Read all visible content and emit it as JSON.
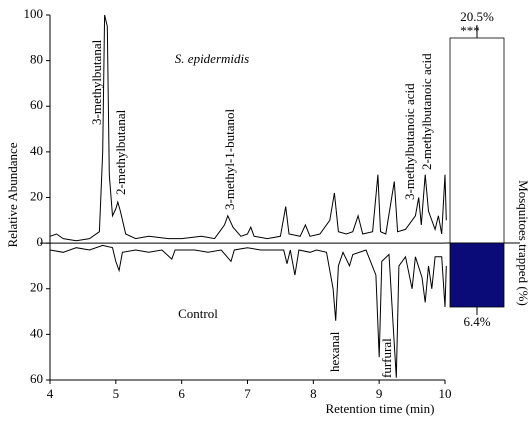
{
  "chart_data": [
    {
      "type": "line",
      "ylabel": "Relative Abundance",
      "xlabel": "Retention time (min)",
      "xlim": [
        4,
        10
      ],
      "xticks": [
        4,
        5,
        6,
        7,
        8,
        9,
        10
      ],
      "ylim": [
        -60,
        100
      ],
      "yticks": [
        {
          "value": -60,
          "label": "60"
        },
        {
          "value": -40,
          "label": "40"
        },
        {
          "value": -20,
          "label": "20"
        },
        0,
        20,
        40,
        60,
        80,
        100
      ],
      "annotations": [
        "S. epidermidis",
        "Control",
        "3-methylbutanal",
        "2-methylbutanal",
        "3-methyl-1-butanol",
        "3-methylbutanoic acid",
        "2-methylbutanoic acid",
        "hexanal",
        "furfural"
      ],
      "series": [
        {
          "name": "S. epidermidis",
          "color": "#000000",
          "x": [
            4.0,
            4.1,
            4.2,
            4.4,
            4.6,
            4.75,
            4.8,
            4.83,
            4.87,
            4.9,
            4.95,
            5.0,
            5.03,
            5.07,
            5.15,
            5.3,
            5.5,
            5.8,
            6.0,
            6.3,
            6.5,
            6.65,
            6.7,
            6.78,
            6.9,
            7.0,
            7.05,
            7.1,
            7.3,
            7.5,
            7.58,
            7.63,
            7.8,
            7.88,
            7.95,
            8.1,
            8.25,
            8.32,
            8.38,
            8.5,
            8.6,
            8.68,
            8.75,
            8.9,
            8.98,
            9.02,
            9.1,
            9.23,
            9.28,
            9.4,
            9.55,
            9.6,
            9.64,
            9.7,
            9.75,
            9.85,
            9.9,
            9.95,
            10.0,
            10.02
          ],
          "values": [
            3,
            4,
            2,
            1,
            2,
            5,
            40,
            100,
            95,
            30,
            12,
            15,
            18,
            14,
            4,
            2,
            3,
            2,
            2,
            3,
            2,
            8,
            12,
            7,
            3,
            4,
            7,
            3,
            2,
            3,
            16,
            4,
            3,
            8,
            3,
            4,
            10,
            22,
            5,
            4,
            5,
            12,
            4,
            5,
            30,
            5,
            4,
            27,
            5,
            6,
            12,
            20,
            8,
            30,
            14,
            6,
            12,
            4,
            30,
            10
          ]
        },
        {
          "name": "Control",
          "color": "#000000",
          "x": [
            4.0,
            4.2,
            4.4,
            4.6,
            4.8,
            4.95,
            5.0,
            5.05,
            5.1,
            5.3,
            5.5,
            5.7,
            5.85,
            5.9,
            6.2,
            6.4,
            6.6,
            6.75,
            6.8,
            7.0,
            7.2,
            7.55,
            7.6,
            7.65,
            7.72,
            7.78,
            7.95,
            8.05,
            8.2,
            8.3,
            8.34,
            8.38,
            8.45,
            8.55,
            8.6,
            8.8,
            8.95,
            9.0,
            9.04,
            9.15,
            9.22,
            9.26,
            9.3,
            9.4,
            9.5,
            9.55,
            9.65,
            9.7,
            9.75,
            9.8,
            9.85,
            9.95,
            10.0,
            10.02
          ],
          "values": [
            -3,
            -4,
            -2,
            -3,
            -1,
            -2,
            -8,
            -12,
            -4,
            -3,
            -4,
            -3,
            -7,
            -3,
            -3,
            -4,
            -3,
            -8,
            -3,
            -2,
            -3,
            -3,
            -9,
            -3,
            -14,
            -3,
            -4,
            -3,
            -4,
            -20,
            -34,
            -10,
            -4,
            -10,
            -5,
            -3,
            -14,
            -50,
            -8,
            -5,
            -40,
            -59,
            -10,
            -6,
            -20,
            -6,
            -15,
            -26,
            -10,
            -20,
            -6,
            -6,
            -28,
            -10
          ]
        }
      ]
    },
    {
      "type": "bar",
      "ylabel": "Mosquitoes trapped (%)",
      "significance": "***",
      "categories": [
        null,
        null
      ],
      "values": [
        20.5,
        -6.4
      ],
      "value_labels": [
        "20.5%",
        "6.4%"
      ],
      "colors": [
        "#ffffff",
        "#0a0a78"
      ]
    }
  ]
}
